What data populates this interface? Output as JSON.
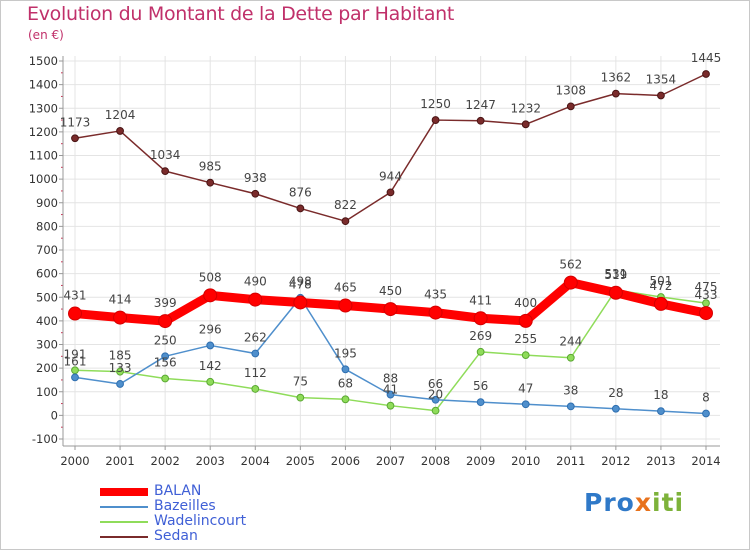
{
  "header": {
    "title": "Evolution du Montant de la Dette par Habitant",
    "subtitle": "(en €)"
  },
  "logo": {
    "text": "Proxiti",
    "letters": [
      "P",
      "r",
      "o",
      "x",
      "i",
      "t",
      "i"
    ],
    "colors": [
      "#2f79c8",
      "#2f79c8",
      "#2f79c8",
      "#e8721c",
      "#7db23a",
      "#7db23a",
      "#7db23a"
    ]
  },
  "chart_data": {
    "type": "line",
    "title": "Evolution du Montant de la Dette par Habitant",
    "subtitle": "(en €)",
    "xlabel": "",
    "ylabel": "",
    "ylim": [
      -100,
      1500
    ],
    "ytick_step": 100,
    "grid": true,
    "legend_position": "bottom-left",
    "x": [
      2000,
      2001,
      2002,
      2003,
      2004,
      2005,
      2006,
      2007,
      2008,
      2009,
      2010,
      2011,
      2012,
      2013,
      2014
    ],
    "series": [
      {
        "name": "BALAN",
        "color": "#ff0000",
        "values": [
          431,
          414,
          399,
          508,
          490,
          478,
          465,
          450,
          435,
          411,
          400,
          562,
          519,
          472,
          433
        ],
        "value_labels": [
          "431",
          "414",
          "399",
          "508",
          "490",
          "478",
          "465",
          "450",
          "435",
          "411",
          "400",
          "562",
          "519",
          "472",
          "433"
        ]
      },
      {
        "name": "Bazeilles",
        "color": "#4f8fcc",
        "values": [
          161,
          133,
          250,
          296,
          262,
          498,
          195,
          88,
          66,
          56,
          47,
          38,
          28,
          18,
          8
        ],
        "value_labels": [
          "161",
          "133",
          "250",
          "296",
          "262",
          "498",
          "195",
          "88",
          "66",
          "56",
          "47",
          "38",
          "28",
          "18",
          "8"
        ]
      },
      {
        "name": "Wadelincourt",
        "color": "#8fdc5a",
        "values": [
          191,
          185,
          156,
          142,
          112,
          75,
          68,
          41,
          20,
          269,
          255,
          244,
          531,
          501,
          475
        ],
        "value_labels": [
          "191",
          "185",
          "156",
          "142",
          "112",
          "75",
          "68",
          "41",
          "20",
          "269",
          "255",
          "244",
          "531",
          "501",
          "475"
        ]
      },
      {
        "name": "Sedan",
        "color": "#7a2b2b",
        "values": [
          1173,
          1204,
          1034,
          985,
          938,
          876,
          822,
          944,
          1250,
          1247,
          1232,
          1308,
          1362,
          1354,
          1445
        ],
        "value_labels": [
          "1173",
          "1204",
          "1034",
          "985",
          "938",
          "876",
          "822",
          "944",
          "1250",
          "1247",
          "1232",
          "1308",
          "1362",
          "1354",
          "1445"
        ]
      }
    ]
  }
}
